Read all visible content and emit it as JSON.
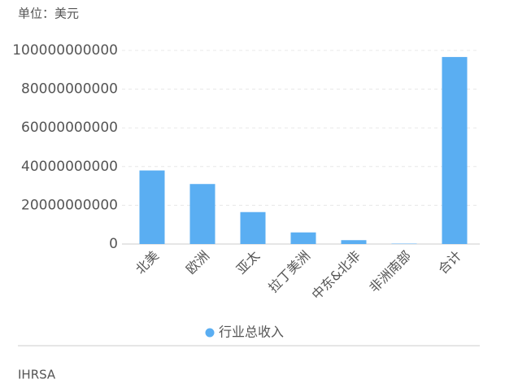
{
  "chart_data": {
    "type": "bar",
    "subtitle": "单位：美元",
    "categories": [
      "北美",
      "欧洲",
      "亚太",
      "拉丁美洲",
      "中东&北非",
      "非洲南部",
      "合计"
    ],
    "series": [
      {
        "name": "行业总收入",
        "color": "#5aaef2",
        "values": [
          38000000000,
          31000000000,
          16500000000,
          6000000000,
          2000000000,
          200000000,
          96600000000
        ]
      }
    ],
    "ylim": [
      0,
      100000000000
    ],
    "yticks": [
      0,
      20000000000,
      40000000000,
      60000000000,
      80000000000,
      100000000000
    ],
    "grid": true,
    "legend": "bottom"
  },
  "footer": {
    "source": "IHRSA"
  }
}
